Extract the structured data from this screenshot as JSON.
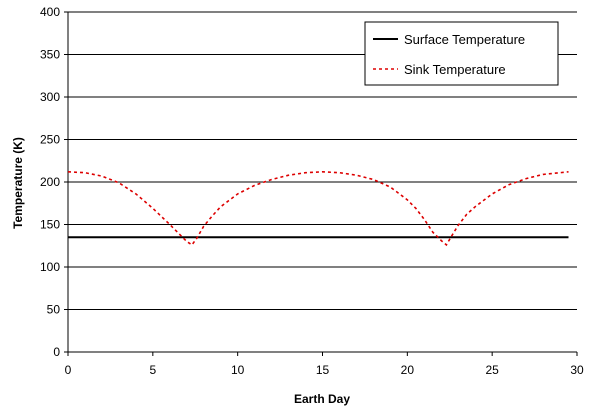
{
  "chart_data": {
    "type": "line",
    "title": "",
    "xlabel": "Earth Day",
    "ylabel": "Temperature (K)",
    "xlim": [
      0,
      30
    ],
    "ylim": [
      0,
      400
    ],
    "x_ticks": [
      0,
      5,
      10,
      15,
      20,
      25,
      30
    ],
    "x_tick_labels": [
      "0",
      "5",
      "10",
      "15",
      "20",
      "25",
      "30"
    ],
    "y_ticks": [
      0,
      50,
      100,
      150,
      200,
      250,
      300,
      350,
      400
    ],
    "y_tick_labels": [
      "0",
      "50",
      "100",
      "150",
      "200",
      "250",
      "300",
      "350",
      "400"
    ],
    "grid": "horizontal",
    "legend_position": "top-right",
    "series": [
      {
        "name": "Surface Temperature",
        "color": "#000000",
        "style": "solid",
        "x": [
          0,
          29.5
        ],
        "y": [
          135,
          135
        ]
      },
      {
        "name": "Sink Temperature",
        "color": "#dd0000",
        "style": "dotted",
        "x": [
          0,
          1,
          2,
          3,
          4,
          5,
          6,
          6.5,
          7,
          7.3,
          7.6,
          8,
          8.5,
          9,
          10,
          11,
          12,
          13,
          14,
          15,
          16,
          17,
          18,
          19,
          20,
          20.5,
          21,
          21.5,
          22,
          22.3,
          22.6,
          23,
          23.5,
          24,
          25,
          26,
          27,
          28,
          29,
          29.5
        ],
        "y": [
          212,
          211,
          207,
          199,
          186,
          169,
          150,
          140,
          130,
          126,
          134,
          148,
          160,
          171,
          186,
          196,
          203,
          208,
          211,
          212,
          211,
          208,
          203,
          194,
          179,
          169,
          156,
          141,
          131,
          126,
          136,
          149,
          162,
          171,
          186,
          197,
          204,
          209,
          211,
          212
        ]
      }
    ]
  }
}
